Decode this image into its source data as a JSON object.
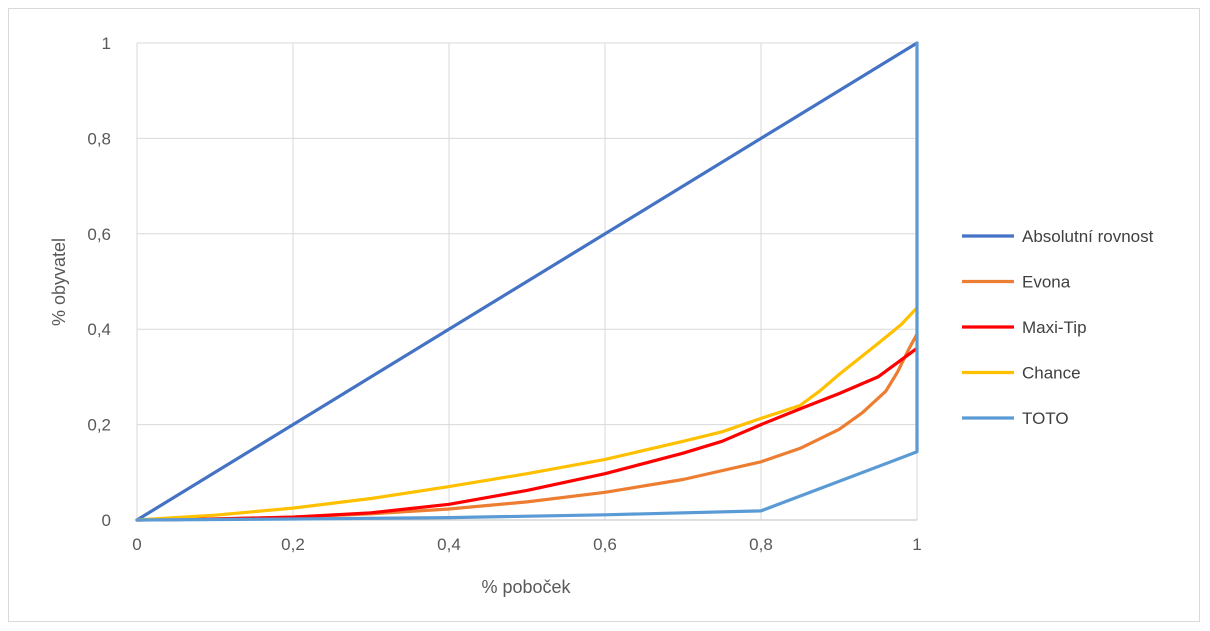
{
  "chart_data": {
    "type": "line",
    "title": "",
    "xlabel": "% poboček",
    "ylabel": "% obyvatel",
    "xlim": [
      0,
      1
    ],
    "ylim": [
      0,
      1
    ],
    "x_ticks": [
      "0",
      "0,2",
      "0,4",
      "0,6",
      "0,8",
      "1"
    ],
    "y_ticks": [
      "0",
      "0,2",
      "0,4",
      "0,6",
      "0,8",
      "1"
    ],
    "grid": true,
    "legend_position": "right",
    "series": [
      {
        "name": "Absolutní rovnost",
        "color": "#4472C4",
        "points": [
          [
            0,
            0
          ],
          [
            1,
            1
          ]
        ]
      },
      {
        "name": "Evona",
        "color": "#ED7D31",
        "points": [
          [
            0,
            0
          ],
          [
            0.1,
            0.002
          ],
          [
            0.2,
            0.006
          ],
          [
            0.3,
            0.013
          ],
          [
            0.4,
            0.023
          ],
          [
            0.5,
            0.038
          ],
          [
            0.6,
            0.058
          ],
          [
            0.7,
            0.085
          ],
          [
            0.8,
            0.122
          ],
          [
            0.85,
            0.15
          ],
          [
            0.9,
            0.19
          ],
          [
            0.93,
            0.225
          ],
          [
            0.96,
            0.27
          ],
          [
            0.975,
            0.31
          ],
          [
            0.99,
            0.36
          ],
          [
            1,
            0.39
          ]
        ]
      },
      {
        "name": "Maxi-Tip",
        "color": "#FF0000",
        "points": [
          [
            0,
            0
          ],
          [
            0.1,
            0.002
          ],
          [
            0.2,
            0.006
          ],
          [
            0.3,
            0.015
          ],
          [
            0.4,
            0.033
          ],
          [
            0.5,
            0.062
          ],
          [
            0.6,
            0.097
          ],
          [
            0.7,
            0.14
          ],
          [
            0.75,
            0.165
          ],
          [
            0.8,
            0.2
          ],
          [
            0.85,
            0.233
          ],
          [
            0.9,
            0.265
          ],
          [
            0.95,
            0.3
          ],
          [
            1,
            0.36
          ]
        ]
      },
      {
        "name": "Chance",
        "color": "#FFC000",
        "points": [
          [
            0,
            0
          ],
          [
            0.1,
            0.01
          ],
          [
            0.2,
            0.025
          ],
          [
            0.3,
            0.045
          ],
          [
            0.4,
            0.07
          ],
          [
            0.5,
            0.097
          ],
          [
            0.6,
            0.127
          ],
          [
            0.7,
            0.165
          ],
          [
            0.75,
            0.185
          ],
          [
            0.8,
            0.213
          ],
          [
            0.85,
            0.24
          ],
          [
            0.875,
            0.27
          ],
          [
            0.9,
            0.305
          ],
          [
            0.95,
            0.37
          ],
          [
            0.98,
            0.41
          ],
          [
            1,
            0.445
          ]
        ]
      },
      {
        "name": "TOTO",
        "color": "#5B9BD5",
        "points": [
          [
            0,
            0
          ],
          [
            0.2,
            0.002
          ],
          [
            0.4,
            0.005
          ],
          [
            0.6,
            0.011
          ],
          [
            0.8,
            0.019
          ],
          [
            1,
            0.143
          ],
          [
            1,
            1
          ]
        ]
      }
    ]
  }
}
